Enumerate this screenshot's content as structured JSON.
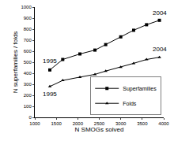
{
  "chart_data": {
    "type": "line",
    "x_label": "N SMOGs solved",
    "y_label": "N superfamilies / folds",
    "xlim": [
      1000,
      4000
    ],
    "xticks": [
      1000,
      1500,
      2000,
      2500,
      3000,
      3500,
      4000
    ],
    "ylim": [
      0,
      1000
    ],
    "yticks": [
      0,
      100,
      200,
      300,
      400,
      500,
      600,
      700,
      800,
      900,
      1000
    ],
    "grid": false,
    "legend": "bottom right",
    "series": [
      {
        "name": "Superfamilies",
        "color": "#000000",
        "marker": "square",
        "x": [
          1350,
          1650,
          2050,
          2400,
          2650,
          3000,
          3300,
          3600,
          3900
        ],
        "values": [
          430,
          525,
          575,
          610,
          660,
          730,
          790,
          840,
          880
        ]
      },
      {
        "name": "Folds",
        "color": "#000000",
        "marker": "triangle",
        "x": [
          1350,
          1650,
          2050,
          2400,
          2650,
          3000,
          3300,
          3600,
          3900
        ],
        "values": [
          280,
          335,
          365,
          390,
          420,
          455,
          490,
          525,
          545
        ]
      }
    ],
    "annotations": [
      {
        "text": "1995",
        "x": 1350,
        "y": 510
      },
      {
        "text": "1995",
        "x": 1350,
        "y": 210
      },
      {
        "text": "2004",
        "x": 3900,
        "y": 950
      },
      {
        "text": "2004",
        "x": 3900,
        "y": 615
      }
    ]
  }
}
